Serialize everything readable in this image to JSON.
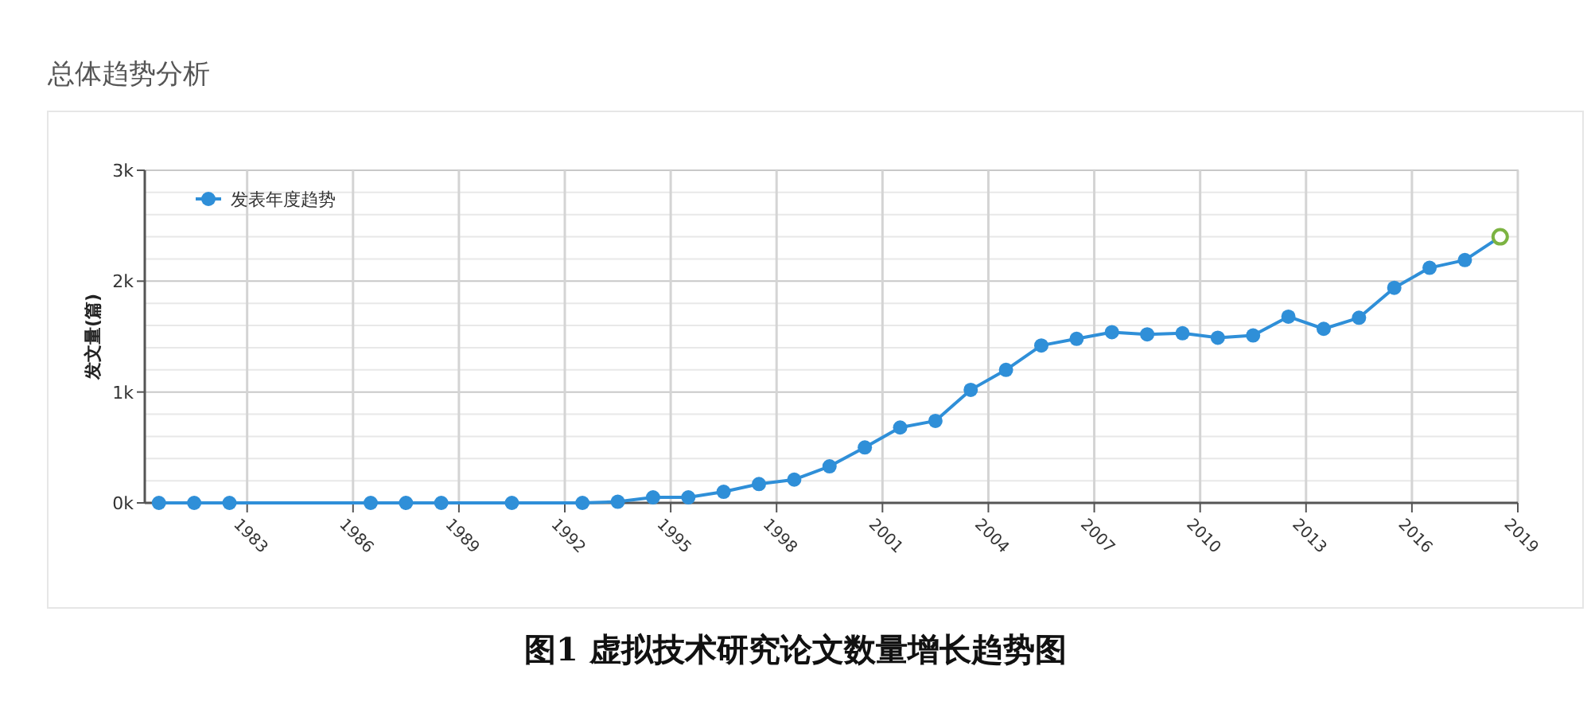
{
  "chart_data": {
    "type": "line",
    "title": "总体趋势分析",
    "ylabel": "发文量(篇)",
    "annotations": [
      "图1   虚拟技术研究论文数量增长趋势图"
    ],
    "x": [
      1981,
      1982,
      1983,
      1987,
      1988,
      1989,
      1991,
      1993,
      1994,
      1995,
      1996,
      1997,
      1998,
      1999,
      2000,
      2001,
      2002,
      2003,
      2004,
      2005,
      2006,
      2007,
      2008,
      2009,
      2010,
      2011,
      2012,
      2013,
      2014,
      2015,
      2016,
      2017,
      2018,
      2019
    ],
    "series": [
      {
        "name": "发表年度趋势",
        "color": "#2f8fd8",
        "colors": [
          "#2f8fd8",
          "#2f8fd8",
          "#2f8fd8",
          "#2f8fd8",
          "#2f8fd8",
          "#2f8fd8",
          "#2f8fd8",
          "#2f8fd8",
          "#2f8fd8",
          "#2f8fd8",
          "#2f8fd8",
          "#2f8fd8",
          "#2f8fd8",
          "#2f8fd8",
          "#2f8fd8",
          "#2f8fd8",
          "#2f8fd8",
          "#2f8fd8",
          "#2f8fd8",
          "#2f8fd8",
          "#2f8fd8",
          "#2f8fd8",
          "#2f8fd8",
          "#2f8fd8",
          "#2f8fd8",
          "#2f8fd8",
          "#2f8fd8",
          "#2f8fd8",
          "#2f8fd8",
          "#2f8fd8",
          "#2f8fd8",
          "#2f8fd8",
          "#2f8fd8",
          "#7cb342"
        ],
        "values": [
          0,
          0,
          0,
          0,
          0,
          0,
          0,
          0,
          10,
          50,
          50,
          100,
          170,
          210,
          330,
          500,
          680,
          740,
          1020,
          1200,
          1420,
          1480,
          1540,
          1520,
          1530,
          1490,
          1510,
          1680,
          1570,
          1670,
          1940,
          2120,
          2190,
          2400
        ]
      }
    ],
    "xlim": [
      1980.6,
      2019.5
    ],
    "xticks": [
      {
        "value": 1983.5,
        "label": "1983"
      },
      {
        "value": 1986.5,
        "label": "1986"
      },
      {
        "value": 1989.5,
        "label": "1989"
      },
      {
        "value": 1992.5,
        "label": "1992"
      },
      {
        "value": 1995.5,
        "label": "1995"
      },
      {
        "value": 1998.5,
        "label": "1998"
      },
      {
        "value": 2001.5,
        "label": "2001"
      },
      {
        "value": 2004.5,
        "label": "2004"
      },
      {
        "value": 2007.5,
        "label": "2007"
      },
      {
        "value": 2010.5,
        "label": "2010"
      },
      {
        "value": 2013.5,
        "label": "2013"
      },
      {
        "value": 2016.5,
        "label": "2016"
      },
      {
        "value": 2019.5,
        "label": "2019"
      }
    ],
    "ylim": [
      0,
      3000
    ],
    "yticks": [
      {
        "value": 0,
        "label": "0k"
      },
      {
        "value": 200,
        "label": null
      },
      {
        "value": 400,
        "label": null
      },
      {
        "value": 600,
        "label": null
      },
      {
        "value": 800,
        "label": null
      },
      {
        "value": 1000,
        "label": "1k"
      },
      {
        "value": 1200,
        "label": null
      },
      {
        "value": 1400,
        "label": null
      },
      {
        "value": 1600,
        "label": null
      },
      {
        "value": 1800,
        "label": null
      },
      {
        "value": 2000,
        "label": "2k"
      },
      {
        "value": 2200,
        "label": null
      },
      {
        "value": 2400,
        "label": null
      },
      {
        "value": 2600,
        "label": null
      },
      {
        "value": 2800,
        "label": null
      },
      {
        "value": 3000,
        "label": "3k"
      }
    ],
    "grid": true,
    "legend": "top left",
    "marker": "circle",
    "line_style": "solid"
  }
}
